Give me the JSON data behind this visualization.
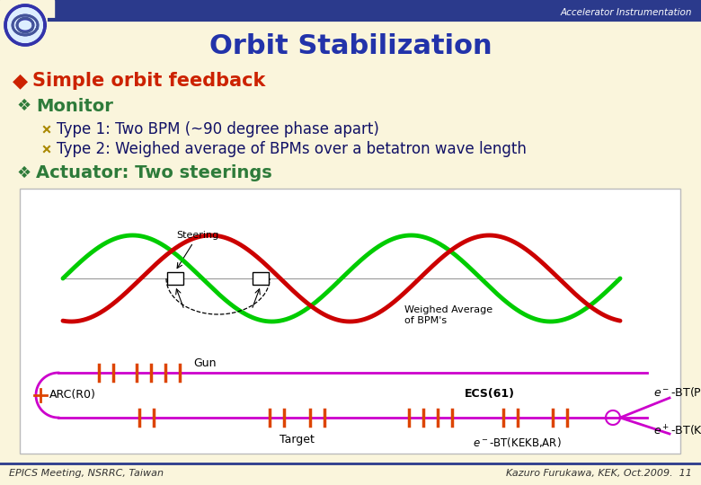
{
  "bg_color": "#FAF5DC",
  "header_bar_color": "#2B3A8C",
  "title": "Orbit Stabilization",
  "title_color": "#2233AA",
  "title_fontsize": 22,
  "accel_text": "Accelerator Instrumentation",
  "bullet1": "Simple orbit feedback",
  "bullet1_color": "#CC2200",
  "bullet2": "Monitor",
  "bullet2_color": "#2E7B3A",
  "item1": "Type 1: Two BPM (~90 degree phase apart)",
  "item2": "Type 2: Weighed average of BPMs over a betatron wave length",
  "item_color": "#AA8800",
  "bullet3": "Actuator: Two steerings",
  "bullet3_color": "#2E7B3A",
  "footer_left": "EPICS Meeting, NSRRC, Taiwan",
  "footer_right": "Kazuro Furukawa, KEK, Oct.2009.  11",
  "footer_color": "#333333",
  "magenta": "#CC00CC",
  "orange_tick": "#DD4400",
  "green_wave": "#00CC00",
  "red_wave": "#CC0000"
}
